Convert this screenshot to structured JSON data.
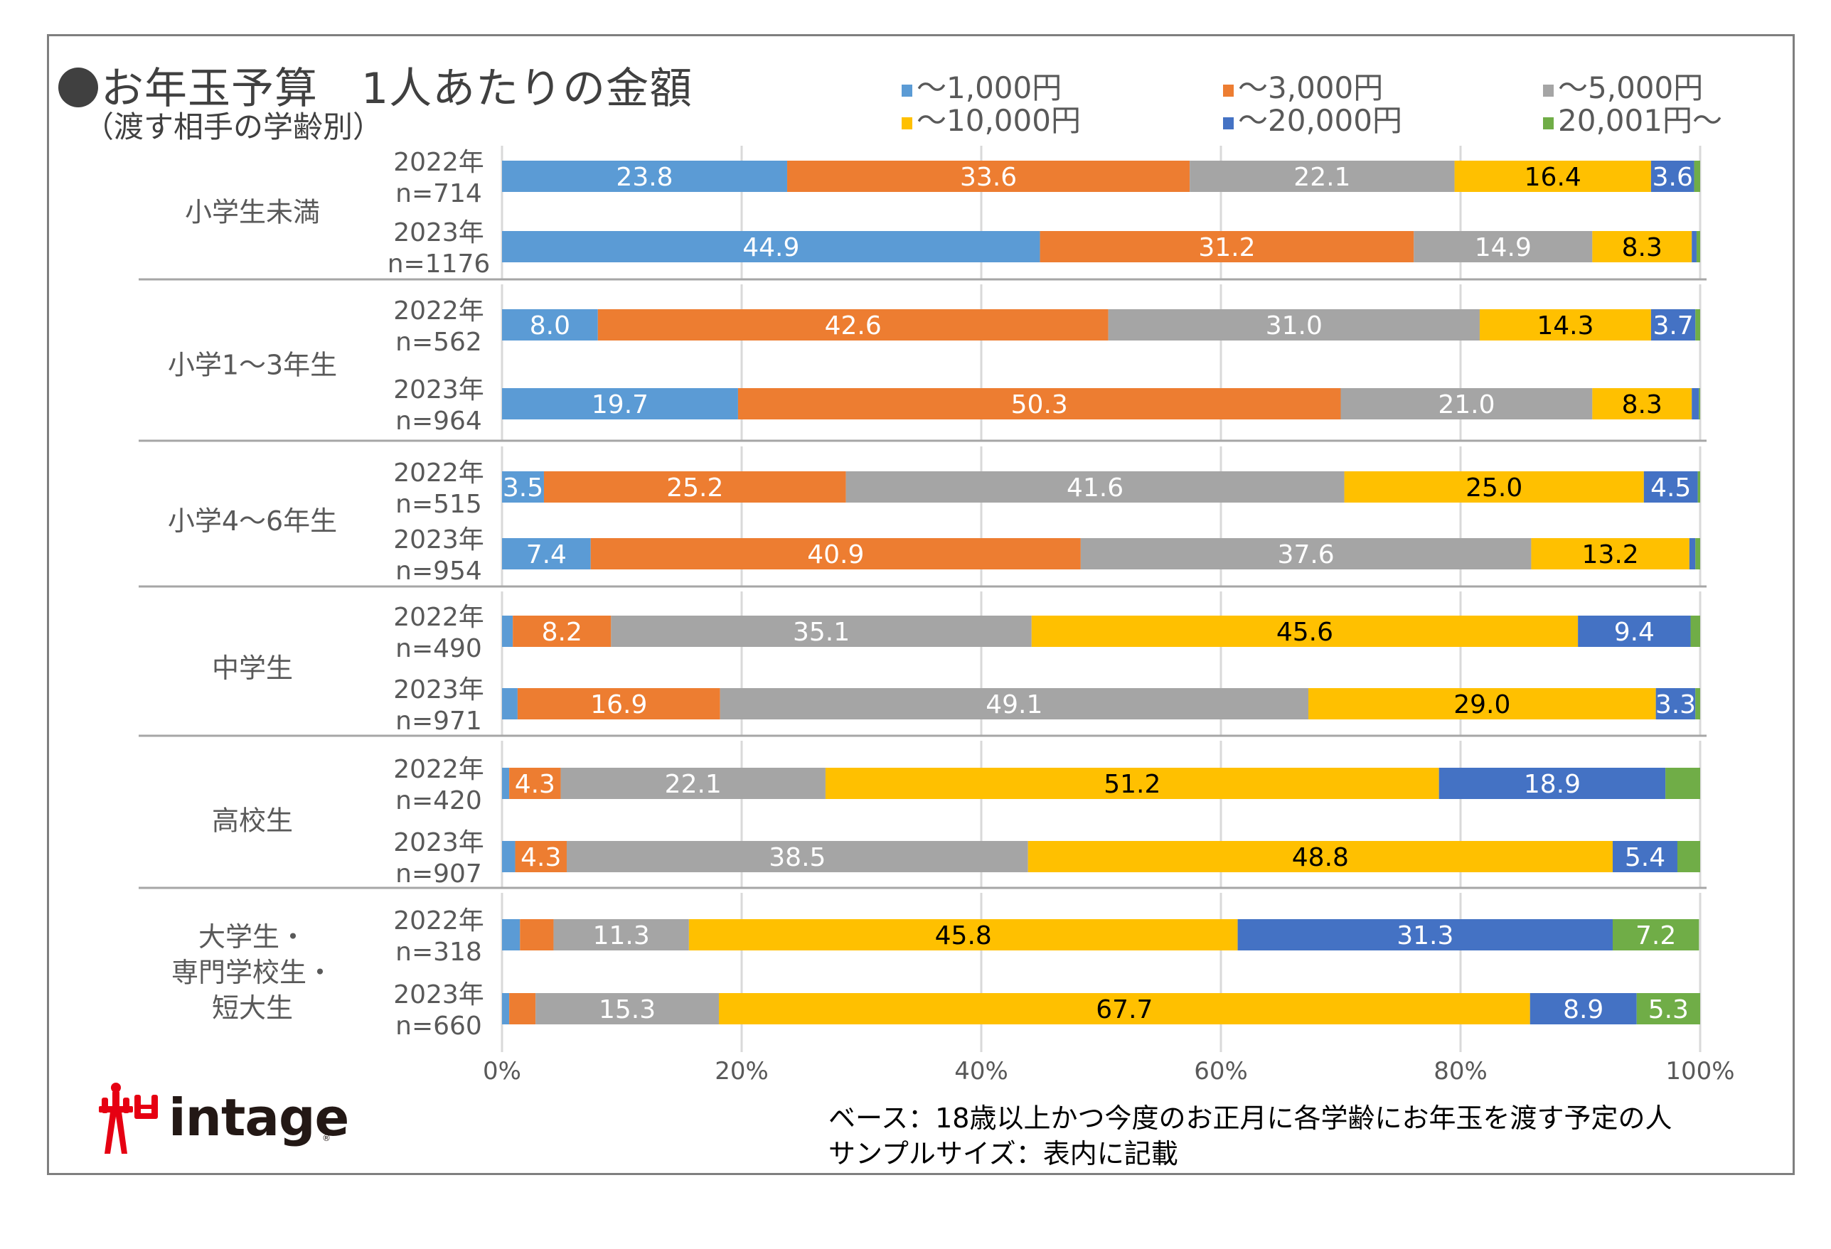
{
  "title": "お年玉予算　1人あたりの金額",
  "subtitle": "（渡す相手の学齢別）",
  "legend": [
    {
      "label": "～1,000円",
      "color": "#5b9bd5"
    },
    {
      "label": "～3,000円",
      "color": "#ed7d31"
    },
    {
      "label": "～5,000円",
      "color": "#a5a5a5"
    },
    {
      "label": "～10,000円",
      "color": "#ffc000"
    },
    {
      "label": "～20,000円",
      "color": "#4472c4"
    },
    {
      "label": "20,001円～",
      "color": "#70ad47"
    }
  ],
  "footnote": {
    "line1": "ベース：18歳以上かつ今度のお正月に各学齢にお年玉を渡す予定の人",
    "line2": "サンプルサイズ：表内に記載"
  },
  "logo": {
    "text": "intage",
    "reg": "®"
  },
  "chart_data": {
    "type": "bar",
    "orientation": "horizontal",
    "stacked": "100%",
    "title": "お年玉予算　1人あたりの金額（渡す相手の学齢別）",
    "xlabel": "",
    "ylabel": "",
    "xlim": [
      0,
      100
    ],
    "x_ticks": [
      "0%",
      "20%",
      "40%",
      "60%",
      "80%",
      "100%"
    ],
    "grid": true,
    "legend_position": "top-right",
    "series_names": [
      "～1,000円",
      "～3,000円",
      "～5,000円",
      "～10,000円",
      "～20,000円",
      "20,001円～"
    ],
    "series_colors": [
      "#5b9bd5",
      "#ed7d31",
      "#a5a5a5",
      "#ffc000",
      "#4472c4",
      "#70ad47"
    ],
    "label_colors": [
      "#ffffff",
      "#ffffff",
      "#ffffff",
      "#000000",
      "#ffffff",
      "#ffffff"
    ],
    "groups": [
      {
        "name": "小学生未満",
        "rows": [
          {
            "year": "2022年",
            "n": "n=714",
            "values": [
              23.8,
              33.6,
              22.1,
              16.4,
              3.6,
              0.5
            ],
            "labels": [
              "23.8",
              "33.6",
              "22.1",
              "16.4",
              "3.6",
              ""
            ]
          },
          {
            "year": "2023年",
            "n": "n=1176",
            "values": [
              44.9,
              31.2,
              14.9,
              8.3,
              0.4,
              0.3
            ],
            "labels": [
              "44.9",
              "31.2",
              "14.9",
              "8.3",
              "",
              ""
            ]
          }
        ]
      },
      {
        "name": "小学1～3年生",
        "rows": [
          {
            "year": "2022年",
            "n": "n=562",
            "values": [
              8.0,
              42.6,
              31.0,
              14.3,
              3.7,
              0.4
            ],
            "labels": [
              "8.0",
              "42.6",
              "31.0",
              "14.3",
              "3.7",
              ""
            ]
          },
          {
            "year": "2023年",
            "n": "n=964",
            "values": [
              19.7,
              50.3,
              21.0,
              8.3,
              0.6,
              0.1
            ],
            "labels": [
              "19.7",
              "50.3",
              "21.0",
              "8.3",
              "",
              ""
            ]
          }
        ]
      },
      {
        "name": "小学4～6年生",
        "rows": [
          {
            "year": "2022年",
            "n": "n=515",
            "values": [
              3.5,
              25.2,
              41.6,
              25.0,
              4.5,
              0.2
            ],
            "labels": [
              "3.5",
              "25.2",
              "41.6",
              "25.0",
              "4.5",
              ""
            ]
          },
          {
            "year": "2023年",
            "n": "n=954",
            "values": [
              7.4,
              40.9,
              37.6,
              13.2,
              0.5,
              0.4
            ],
            "labels": [
              "7.4",
              "40.9",
              "37.6",
              "13.2",
              "",
              ""
            ]
          }
        ]
      },
      {
        "name": "中学生",
        "rows": [
          {
            "year": "2022年",
            "n": "n=490",
            "values": [
              0.9,
              8.2,
              35.1,
              45.6,
              9.4,
              0.8
            ],
            "labels": [
              "",
              "8.2",
              "35.1",
              "45.6",
              "9.4",
              ""
            ]
          },
          {
            "year": "2023年",
            "n": "n=971",
            "values": [
              1.3,
              16.9,
              49.1,
              29.0,
              3.3,
              0.4
            ],
            "labels": [
              "",
              "16.9",
              "49.1",
              "29.0",
              "3.3",
              ""
            ]
          }
        ]
      },
      {
        "name": "高校生",
        "rows": [
          {
            "year": "2022年",
            "n": "n=420",
            "values": [
              0.6,
              4.3,
              22.1,
              51.2,
              18.9,
              2.9
            ],
            "labels": [
              "",
              "4.3",
              "22.1",
              "51.2",
              "18.9",
              ""
            ]
          },
          {
            "year": "2023年",
            "n": "n=907",
            "values": [
              1.1,
              4.3,
              38.5,
              48.8,
              5.4,
              1.9
            ],
            "labels": [
              "",
              "4.3",
              "38.5",
              "48.8",
              "5.4",
              ""
            ]
          }
        ]
      },
      {
        "name": "大学生・\n専門学校生・\n短大生",
        "rows": [
          {
            "year": "2022年",
            "n": "n=318",
            "values": [
              1.5,
              2.8,
              11.3,
              45.8,
              31.3,
              7.2
            ],
            "labels": [
              "",
              "",
              "11.3",
              "45.8",
              "31.3",
              "7.2"
            ]
          },
          {
            "year": "2023年",
            "n": "n=660",
            "values": [
              0.6,
              2.2,
              15.3,
              67.7,
              8.9,
              5.3
            ],
            "labels": [
              "",
              "",
              "15.3",
              "67.7",
              "8.9",
              "5.3"
            ]
          }
        ]
      }
    ]
  }
}
